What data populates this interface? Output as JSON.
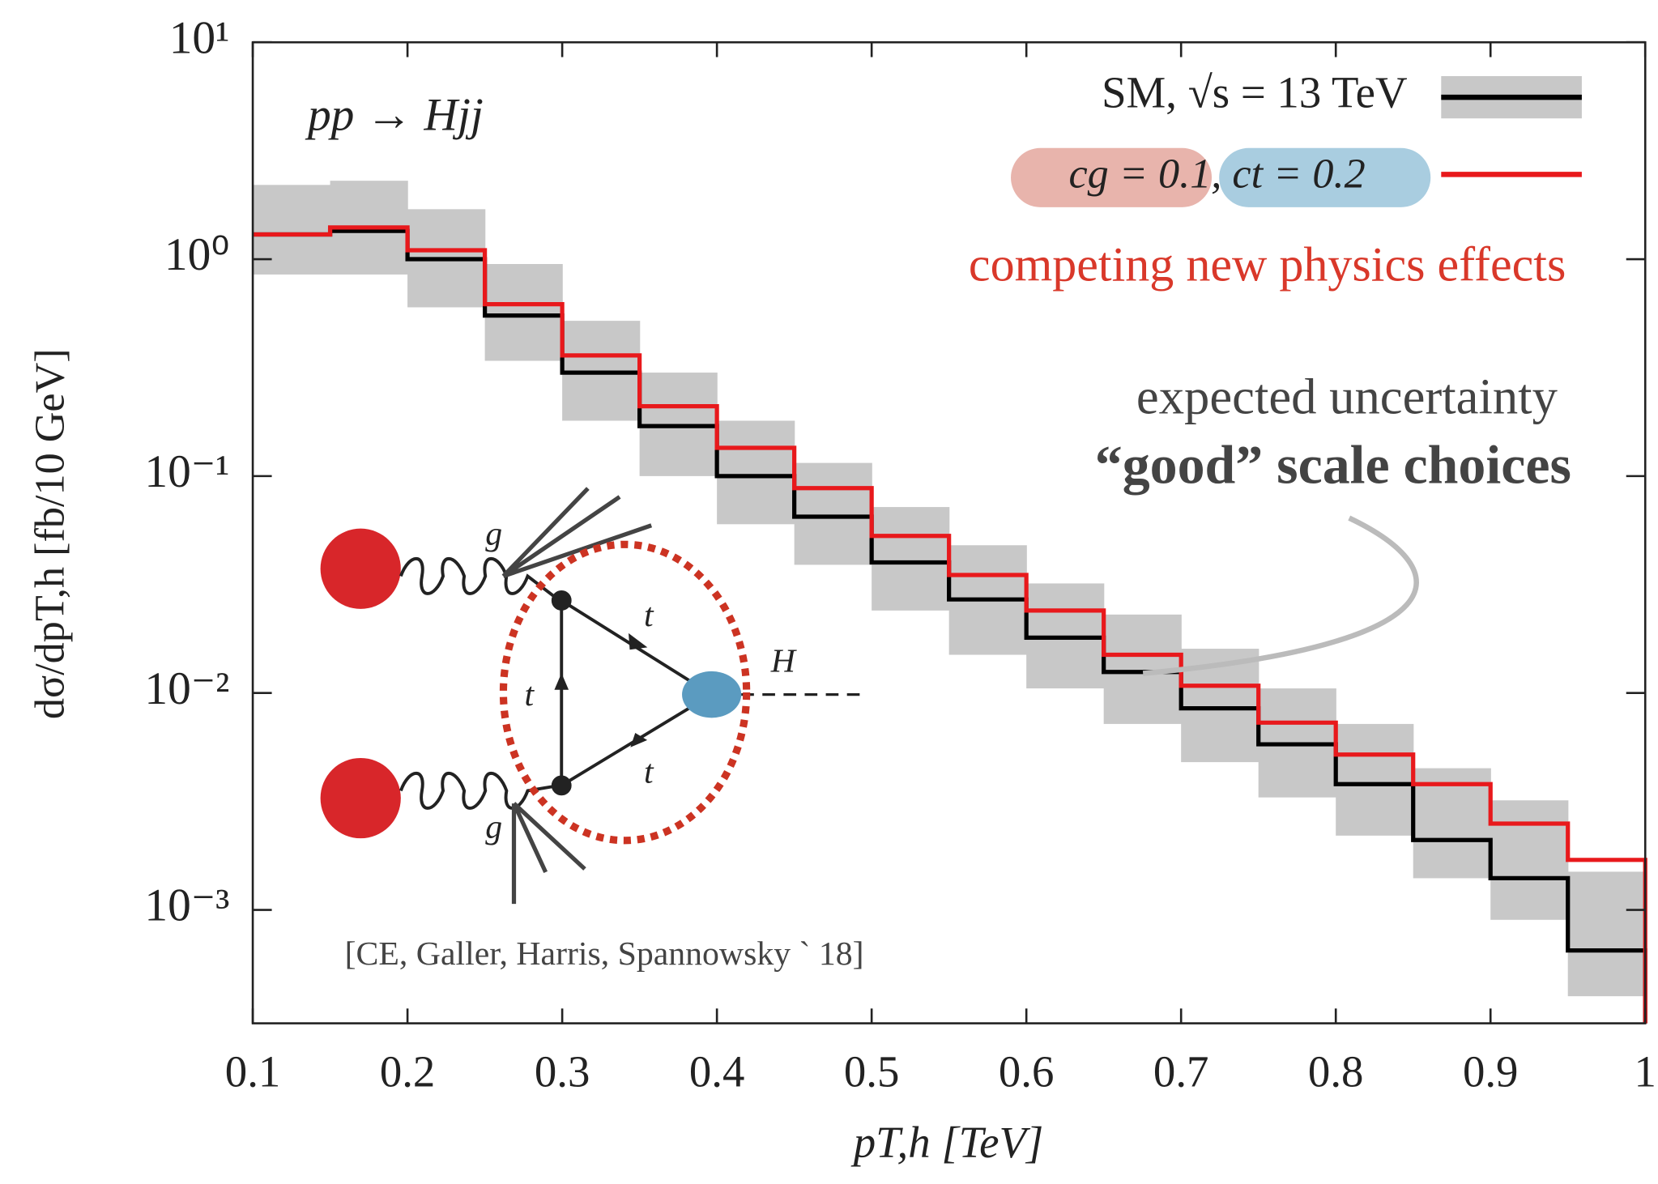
{
  "chart_data": {
    "type": "line",
    "step": true,
    "log_y": true,
    "x_label": "pT,h [TeV]",
    "y_label": "dσ/dpT,h [fb/10 GeV]",
    "x": [
      0.1,
      0.15,
      0.2,
      0.25,
      0.3,
      0.35,
      0.4,
      0.45,
      0.5,
      0.55,
      0.6,
      0.65,
      0.7,
      0.75,
      0.8,
      0.85,
      0.9,
      0.95
    ],
    "band": {
      "color": "#c8c8c8",
      "low": [
        0.85,
        0.85,
        0.6,
        0.34,
        0.18,
        0.1,
        0.06,
        0.039,
        0.024,
        0.015,
        0.0105,
        0.0072,
        0.0048,
        0.0033,
        0.0022,
        0.0014,
        0.0009,
        0.0004
      ],
      "high": [
        2.2,
        2.3,
        1.7,
        0.95,
        0.52,
        0.3,
        0.18,
        0.115,
        0.072,
        0.048,
        0.032,
        0.023,
        0.016,
        0.0105,
        0.0072,
        0.0045,
        0.0032,
        0.0015
      ]
    },
    "series": [
      {
        "name": "SM, √s = 13 TeV",
        "color": "#000000",
        "values": [
          1.3,
          1.35,
          1.0,
          0.55,
          0.3,
          0.17,
          0.1,
          0.065,
          0.04,
          0.027,
          0.018,
          0.0125,
          0.0085,
          0.0058,
          0.0038,
          0.0021,
          0.0014,
          0.00065
        ]
      },
      {
        "name": "cg = 0.1, ct = 0.2",
        "color": "#e8191c",
        "values": [
          1.3,
          1.4,
          1.1,
          0.62,
          0.36,
          0.21,
          0.135,
          0.088,
          0.053,
          0.035,
          0.024,
          0.015,
          0.0108,
          0.0073,
          0.0052,
          0.0038,
          0.0025,
          0.0017
        ]
      }
    ],
    "xlim": [
      0.1,
      1
    ],
    "ylim": [
      0.0003,
      10
    ],
    "xticks": [
      0.1,
      0.2,
      0.3,
      0.4,
      0.5,
      0.6,
      0.7,
      0.8,
      0.9,
      1
    ],
    "yticks": [
      {
        "value": 0.001,
        "label": "10⁻³"
      },
      {
        "value": 0.01,
        "label": "10⁻²"
      },
      {
        "value": 0.1,
        "label": "10⁻¹"
      },
      {
        "value": 1,
        "label": "10⁰"
      },
      {
        "value": 10,
        "label": "10¹"
      }
    ],
    "annotations": {
      "process": "pp → Hjj",
      "headline": "competing new physics effects",
      "uncertainty_1": "expected uncertainty",
      "uncertainty_2": "“good” scale choices",
      "citation": "[CE, Galler, Harris, Spannowsky ` 18]",
      "diagram": [
        "g",
        "g",
        "t",
        "t",
        "t",
        "H"
      ]
    }
  }
}
